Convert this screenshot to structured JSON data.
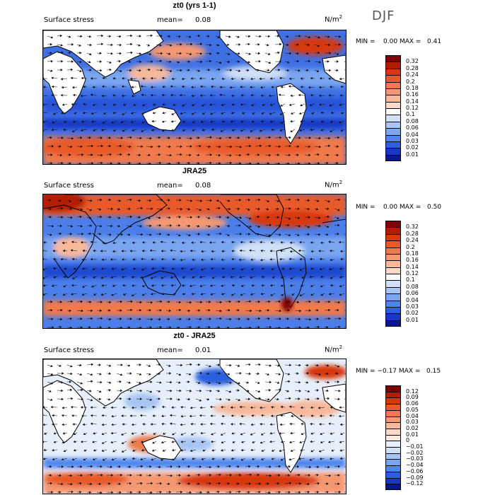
{
  "season": "DJF",
  "colors": {
    "land": "#ffffff",
    "coast": "#000000",
    "arrow": "#111111"
  },
  "panels": [
    {
      "id": "model",
      "title": "zt0 (yrs 1-1)",
      "left_label": "Surface stress",
      "mean_label": "mean=",
      "mean_value": "0.08",
      "units_base": "N/m",
      "units_sup": "2",
      "min_label": "MIN =",
      "min_value": "0.00",
      "max_label": "MAX =",
      "max_value": "0.41",
      "colorbar": {
        "labels": [
          "0.32",
          "0.28",
          "0.24",
          "0.2",
          "0.18",
          "0.16",
          "0.14",
          "0.12",
          "0.1",
          "0.08",
          "0.06",
          "0.04",
          "0.03",
          "0.02",
          "0.01"
        ],
        "colors": [
          "#7f0000",
          "#b51b00",
          "#d8380c",
          "#e85a2a",
          "#f07a4c",
          "#f59872",
          "#f8b89a",
          "#fbd9c6",
          "#ffffff",
          "#cfe0f7",
          "#a7c5f4",
          "#7aa6f0",
          "#4f86ee",
          "#2b5fe0",
          "#1638c4",
          "#07188f"
        ]
      }
    },
    {
      "id": "obs",
      "title": "JRA25",
      "left_label": "Surface stress",
      "mean_label": "mean=",
      "mean_value": "0.08",
      "units_base": "N/m",
      "units_sup": "2",
      "min_label": "MIN =",
      "min_value": "0.00",
      "max_label": "MAX =",
      "max_value": "0.50",
      "colorbar": {
        "labels": [
          "0.32",
          "0.28",
          "0.24",
          "0.2",
          "0.18",
          "0.16",
          "0.14",
          "0.12",
          "0.1",
          "0.08",
          "0.06",
          "0.04",
          "0.03",
          "0.02",
          "0.01"
        ],
        "colors": [
          "#7f0000",
          "#b51b00",
          "#d8380c",
          "#e85a2a",
          "#f07a4c",
          "#f59872",
          "#f8b89a",
          "#fbd9c6",
          "#ffffff",
          "#cfe0f7",
          "#a7c5f4",
          "#7aa6f0",
          "#4f86ee",
          "#2b5fe0",
          "#1638c4",
          "#07188f"
        ]
      }
    },
    {
      "id": "diff",
      "title": "zt0 - JRA25",
      "left_label": "Surface stress",
      "mean_label": "mean=",
      "mean_value": "0.01",
      "units_base": "N/m",
      "units_sup": "2",
      "min_label": "MIN =",
      "min_value": "−0.17",
      "max_label": "MAX =",
      "max_value": "0.15",
      "colorbar": {
        "labels": [
          "0.12",
          "0.09",
          "0.06",
          "0.05",
          "0.04",
          "0.03",
          "0.02",
          "0.01",
          "0",
          "−0.01",
          "−0.02",
          "−0.03",
          "−0.04",
          "−0.06",
          "−0.09",
          "−0.12"
        ],
        "colors": [
          "#7f0000",
          "#b51b00",
          "#d8380c",
          "#e85a2a",
          "#f07a4c",
          "#f59872",
          "#f8b89a",
          "#fbd9c6",
          "#fde9df",
          "#e6effb",
          "#cfe0f7",
          "#a7c5f4",
          "#7aa6f0",
          "#4f86ee",
          "#2b5fe0",
          "#1638c4",
          "#07188f"
        ]
      }
    }
  ]
}
